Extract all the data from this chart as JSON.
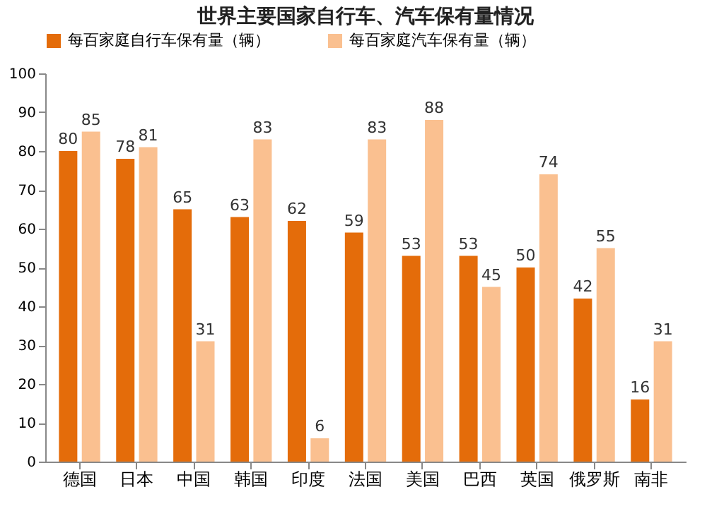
{
  "chart_data": {
    "type": "bar",
    "title": "世界主要国家自行车、汽车保有量情况",
    "categories": [
      "德国",
      "日本",
      "中国",
      "韩国",
      "印度",
      "法国",
      "美国",
      "巴西",
      "英国",
      "俄罗斯",
      "南非"
    ],
    "series": [
      {
        "name": "每百家庭自行车保有量（辆）",
        "color": "#e46c0a",
        "values": [
          80,
          78,
          65,
          63,
          62,
          59,
          53,
          53,
          50,
          42,
          16
        ]
      },
      {
        "name": "每百家庭汽车保有量（辆）",
        "color": "#fac090",
        "values": [
          85,
          81,
          31,
          83,
          6,
          83,
          88,
          45,
          74,
          55,
          31
        ]
      }
    ],
    "ylim": [
      0,
      100
    ],
    "yticks": [
      0,
      10,
      20,
      30,
      40,
      50,
      60,
      70,
      80,
      90,
      100
    ],
    "data_labels": true,
    "legend": "top",
    "grid": false
  }
}
